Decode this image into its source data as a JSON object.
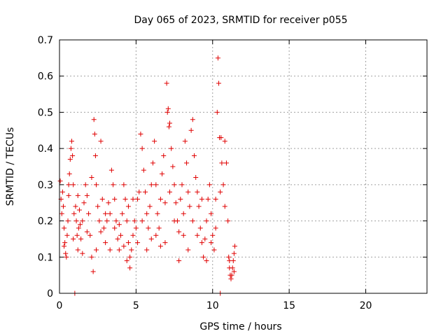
{
  "chart_data": {
    "type": "scatter",
    "title": "Day 065 of 2023, SRMTID for receiver p055",
    "xlabel": "GPS time / hours",
    "ylabel": "SRMTID / TECUs",
    "xlim": [
      0,
      24
    ],
    "ylim": [
      0,
      0.7
    ],
    "xticks": [
      0,
      5,
      10,
      15,
      20
    ],
    "yticks": [
      0,
      0.1,
      0.2,
      0.3,
      0.4,
      0.5,
      0.6,
      0.7
    ],
    "grid": true,
    "marker": "+",
    "color": "#e00000",
    "series": [
      {
        "name": "SRMTID",
        "points": [
          [
            0.05,
            0.31
          ],
          [
            0.1,
            0.26
          ],
          [
            0.15,
            0.22
          ],
          [
            0.2,
            0.28
          ],
          [
            0.25,
            0.24
          ],
          [
            0.3,
            0.18
          ],
          [
            0.35,
            0.14
          ],
          [
            0.4,
            0.11
          ],
          [
            0.45,
            0.1
          ],
          [
            0.5,
            0.16
          ],
          [
            0.55,
            0.2
          ],
          [
            0.6,
            0.27
          ],
          [
            0.65,
            0.33
          ],
          [
            0.7,
            0.37
          ],
          [
            0.75,
            0.4
          ],
          [
            0.8,
            0.42
          ],
          [
            0.85,
            0.38
          ],
          [
            0.9,
            0.3
          ],
          [
            0.95,
            0.22
          ],
          [
            1.0,
            0.0
          ],
          [
            1.05,
            0.24
          ],
          [
            1.1,
            0.2
          ],
          [
            1.15,
            0.16
          ],
          [
            1.2,
            0.12
          ],
          [
            1.25,
            0.18
          ],
          [
            1.3,
            0.23
          ],
          [
            1.35,
            0.19
          ],
          [
            1.4,
            0.15
          ],
          [
            1.5,
            0.2
          ],
          [
            1.6,
            0.25
          ],
          [
            1.7,
            0.3
          ],
          [
            1.8,
            0.27
          ],
          [
            1.9,
            0.22
          ],
          [
            2.0,
            0.16
          ],
          [
            2.1,
            0.1
          ],
          [
            2.2,
            0.06
          ],
          [
            2.25,
            0.48
          ],
          [
            2.3,
            0.44
          ],
          [
            2.35,
            0.38
          ],
          [
            2.4,
            0.3
          ],
          [
            2.5,
            0.24
          ],
          [
            2.6,
            0.2
          ],
          [
            2.7,
            0.42
          ],
          [
            2.8,
            0.26
          ],
          [
            2.9,
            0.18
          ],
          [
            3.0,
            0.14
          ],
          [
            3.1,
            0.2
          ],
          [
            3.2,
            0.25
          ],
          [
            3.3,
            0.22
          ],
          [
            3.4,
            0.34
          ],
          [
            3.5,
            0.3
          ],
          [
            3.6,
            0.26
          ],
          [
            3.7,
            0.2
          ],
          [
            3.8,
            0.15
          ],
          [
            3.9,
            0.12
          ],
          [
            4.0,
            0.16
          ],
          [
            4.1,
            0.22
          ],
          [
            4.2,
            0.3
          ],
          [
            4.3,
            0.26
          ],
          [
            4.4,
            0.2
          ],
          [
            4.5,
            0.14
          ],
          [
            4.6,
            0.1
          ],
          [
            4.7,
            0.12
          ],
          [
            4.8,
            0.16
          ],
          [
            4.9,
            0.2
          ],
          [
            5.0,
            0.18
          ],
          [
            5.1,
            0.14
          ],
          [
            5.2,
            0.28
          ],
          [
            5.3,
            0.44
          ],
          [
            5.4,
            0.4
          ],
          [
            5.5,
            0.34
          ],
          [
            5.6,
            0.28
          ],
          [
            5.7,
            0.22
          ],
          [
            5.8,
            0.18
          ],
          [
            5.9,
            0.24
          ],
          [
            6.0,
            0.3
          ],
          [
            6.1,
            0.36
          ],
          [
            6.2,
            0.42
          ],
          [
            6.3,
            0.3
          ],
          [
            6.4,
            0.22
          ],
          [
            6.5,
            0.18
          ],
          [
            6.6,
            0.26
          ],
          [
            6.7,
            0.33
          ],
          [
            6.8,
            0.38
          ],
          [
            6.9,
            0.25
          ],
          [
            7.0,
            0.58
          ],
          [
            7.05,
            0.5
          ],
          [
            7.1,
            0.51
          ],
          [
            7.15,
            0.46
          ],
          [
            7.2,
            0.47
          ],
          [
            7.3,
            0.4
          ],
          [
            7.4,
            0.35
          ],
          [
            7.5,
            0.3
          ],
          [
            7.6,
            0.25
          ],
          [
            7.7,
            0.2
          ],
          [
            7.8,
            0.17
          ],
          [
            7.9,
            0.26
          ],
          [
            8.0,
            0.3
          ],
          [
            8.1,
            0.22
          ],
          [
            8.2,
            0.42
          ],
          [
            8.3,
            0.36
          ],
          [
            8.4,
            0.28
          ],
          [
            8.5,
            0.24
          ],
          [
            8.6,
            0.45
          ],
          [
            8.7,
            0.48
          ],
          [
            8.8,
            0.38
          ],
          [
            8.9,
            0.32
          ],
          [
            9.0,
            0.28
          ],
          [
            9.1,
            0.24
          ],
          [
            9.2,
            0.18
          ],
          [
            9.3,
            0.14
          ],
          [
            9.4,
            0.1
          ],
          [
            9.5,
            0.15
          ],
          [
            9.6,
            0.2
          ],
          [
            9.7,
            0.26
          ],
          [
            9.8,
            0.3
          ],
          [
            9.9,
            0.22
          ],
          [
            10.0,
            0.16
          ],
          [
            10.1,
            0.12
          ],
          [
            10.2,
            0.26
          ],
          [
            10.3,
            0.5
          ],
          [
            10.35,
            0.65
          ],
          [
            10.4,
            0.58
          ],
          [
            10.45,
            0.43
          ],
          [
            10.5,
            0.0
          ],
          [
            10.55,
            0.43
          ],
          [
            10.6,
            0.36
          ],
          [
            10.7,
            0.3
          ],
          [
            10.8,
            0.42
          ],
          [
            10.9,
            0.36
          ],
          [
            11.0,
            0.2
          ],
          [
            11.05,
            0.1
          ],
          [
            11.1,
            0.07
          ],
          [
            11.15,
            0.05
          ],
          [
            11.2,
            0.04
          ],
          [
            11.25,
            0.05
          ],
          [
            11.3,
            0.07
          ],
          [
            11.35,
            0.09
          ],
          [
            11.4,
            0.11
          ],
          [
            11.45,
            0.13
          ],
          [
            0.3,
            0.13
          ],
          [
            0.6,
            0.3
          ],
          [
            1.2,
            0.27
          ],
          [
            1.8,
            0.17
          ],
          [
            2.4,
            0.12
          ],
          [
            3.0,
            0.22
          ],
          [
            3.6,
            0.18
          ],
          [
            4.2,
            0.13
          ],
          [
            4.8,
            0.26
          ],
          [
            5.4,
            0.2
          ],
          [
            6.0,
            0.15
          ],
          [
            6.6,
            0.13
          ],
          [
            7.2,
            0.28
          ],
          [
            7.8,
            0.09
          ],
          [
            8.4,
            0.12
          ],
          [
            9.0,
            0.16
          ],
          [
            9.6,
            0.09
          ],
          [
            10.2,
            0.18
          ],
          [
            10.8,
            0.24
          ],
          [
            11.4,
            0.06
          ],
          [
            0.9,
            0.15
          ],
          [
            1.5,
            0.11
          ],
          [
            2.1,
            0.32
          ],
          [
            2.7,
            0.17
          ],
          [
            3.3,
            0.12
          ],
          [
            3.9,
            0.19
          ],
          [
            4.5,
            0.24
          ],
          [
            5.1,
            0.26
          ],
          [
            5.7,
            0.12
          ],
          [
            6.3,
            0.16
          ],
          [
            6.9,
            0.14
          ],
          [
            7.5,
            0.2
          ],
          [
            8.1,
            0.16
          ],
          [
            8.7,
            0.2
          ],
          [
            9.3,
            0.26
          ],
          [
            9.9,
            0.14
          ],
          [
            10.5,
            0.28
          ],
          [
            11.1,
            0.09
          ],
          [
            4.4,
            0.09
          ],
          [
            4.6,
            0.07
          ]
        ]
      }
    ]
  }
}
